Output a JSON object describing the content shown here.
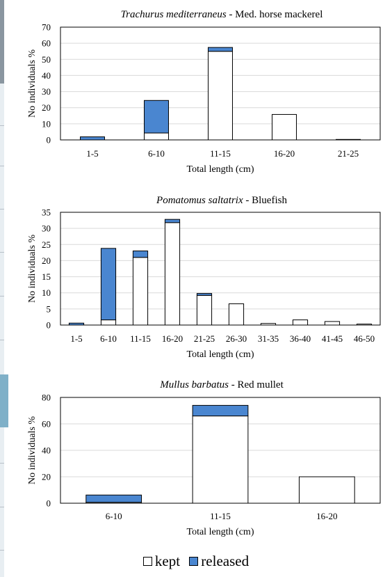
{
  "chart_data": [
    {
      "type": "bar",
      "stacked": true,
      "title_italic": "Trachurus mediterraneus",
      "title_rest": " - Med. horse mackerel",
      "xlabel": "Total length (cm)",
      "ylabel": "No individuals %",
      "ylim": [
        0,
        70
      ],
      "yticks": [
        0,
        10,
        20,
        30,
        40,
        50,
        60,
        70
      ],
      "grid": true,
      "categories": [
        "1-5",
        "6-10",
        "11-15",
        "16-20",
        "21-25"
      ],
      "series": [
        {
          "name": "kept",
          "color": "#ffffff",
          "values": [
            0,
            4.3,
            55.0,
            15.8,
            0.3
          ]
        },
        {
          "name": "released",
          "color": "#4a86d0",
          "values": [
            1.9,
            20.2,
            2.4,
            0,
            0
          ]
        }
      ]
    },
    {
      "type": "bar",
      "stacked": true,
      "title_italic": "Pomatomus saltatrix",
      "title_rest": " - Bluefish",
      "xlabel": "Total length (cm)",
      "ylabel": "No individuals %",
      "ylim": [
        0,
        35
      ],
      "yticks": [
        0,
        5,
        10,
        15,
        20,
        25,
        30,
        35
      ],
      "grid": true,
      "categories": [
        "1-5",
        "6-10",
        "11-15",
        "16-20",
        "21-25",
        "26-30",
        "31-35",
        "36-40",
        "41-45",
        "46-50"
      ],
      "series": [
        {
          "name": "kept",
          "color": "#ffffff",
          "values": [
            0,
            1.6,
            21.0,
            31.8,
            9.2,
            6.6,
            0.5,
            1.6,
            1.1,
            0.3
          ]
        },
        {
          "name": "released",
          "color": "#4a86d0",
          "values": [
            0.6,
            22.2,
            2.0,
            1.0,
            0.6,
            0,
            0,
            0,
            0,
            0
          ]
        }
      ]
    },
    {
      "type": "bar",
      "stacked": true,
      "title_italic": "Mullus barbatus",
      "title_rest": " - Red mullet",
      "xlabel": "Total length (cm)",
      "ylabel": "No individuals %",
      "ylim": [
        0,
        80
      ],
      "yticks": [
        0,
        20,
        40,
        60,
        80
      ],
      "grid": true,
      "categories": [
        "6-10",
        "11-15",
        "16-20"
      ],
      "series": [
        {
          "name": "kept",
          "color": "#ffffff",
          "values": [
            0.7,
            66.0,
            20.0
          ]
        },
        {
          "name": "released",
          "color": "#4a86d0",
          "values": [
            5.5,
            8.0,
            0
          ]
        }
      ]
    }
  ],
  "legend": {
    "placement": "bottom-center",
    "items": [
      {
        "label": "kept",
        "color": "#ffffff"
      },
      {
        "label": "released",
        "color": "#4a86d0"
      }
    ]
  }
}
